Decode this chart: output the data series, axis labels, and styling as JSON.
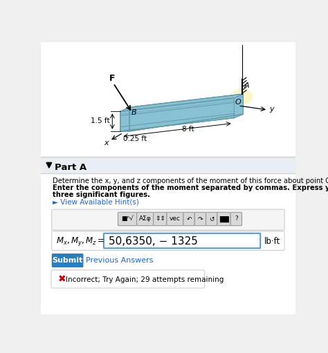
{
  "bg_color": "#f0f0f0",
  "diagram_bg": "#ffffff",
  "title_text": "Part A",
  "question_line1": "Determine the x, y, and z components of the moment of this force about point O.",
  "question_line2": "Enter the components of the moment separated by commas. Express your answers in pound-feet",
  "question_line3": "three significant figures.",
  "hint_text": "► View Available Hint(s)",
  "hint_color": "#2266bb",
  "equation_value": "50,6350, − 1325",
  "unit_text": "lb·ft",
  "submit_text": "Submit",
  "submit_bg": "#2a7fba",
  "prev_text": "Previous Answers",
  "prev_color": "#2266bb",
  "incorrect_text": "Incorrect; Try Again; 29 attempts remaining",
  "incorrect_color": "#cc0000",
  "dim_8ft": "8 ft",
  "dim_15ft": "1.5 ft",
  "dim_025ft": "0.25 ft",
  "label_F": "F",
  "label_B": "B",
  "label_A": "A",
  "label_O": "O",
  "label_x": "x",
  "label_y": "y",
  "beam_top_color": "#c8e8f0",
  "beam_front_color": "#a0d0e0",
  "beam_side_color": "#88c0d4",
  "beam_edge_color": "#6699aa",
  "part_a_bar_color": "#e8eef4",
  "toolbar_box_color": "#e8e8e8",
  "toolbar_btn_color": "#d0d0d0",
  "input_box_color": "#5599cc"
}
